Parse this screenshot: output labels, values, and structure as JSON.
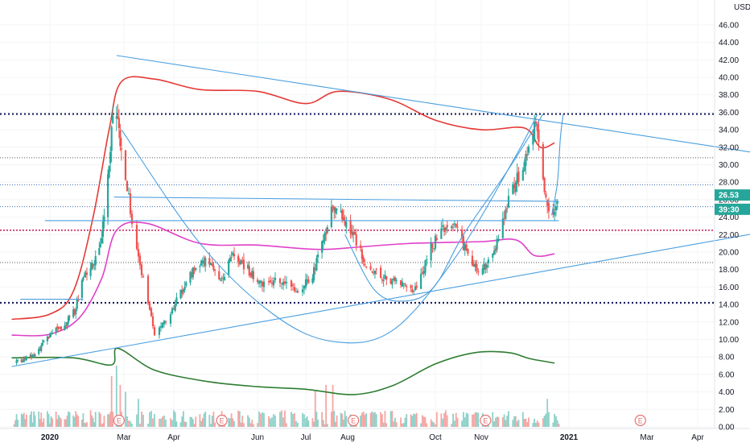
{
  "chart_data": {
    "type": "candlestick",
    "currency": "USD",
    "y_axis": {
      "range": [
        0,
        46
      ],
      "ticks": [
        "0.00",
        "2.00",
        "4.00",
        "6.00",
        "8.00",
        "10.00",
        "12.00",
        "14.00",
        "16.00",
        "18.00",
        "20.00",
        "22.00",
        "24.00",
        "26.00",
        "28.00",
        "30.00",
        "32.00",
        "34.00",
        "36.00",
        "38.00",
        "40.00",
        "42.00",
        "44.00",
        "46.00"
      ]
    },
    "x_axis": {
      "labels": [
        {
          "text": "2020",
          "bold": true
        },
        {
          "text": "Mar",
          "bold": false
        },
        {
          "text": "Apr",
          "bold": false
        },
        {
          "text": "Jun",
          "bold": false
        },
        {
          "text": "Jul",
          "bold": false
        },
        {
          "text": "Aug",
          "bold": false
        },
        {
          "text": "Oct",
          "bold": false
        },
        {
          "text": "Nov",
          "bold": false
        },
        {
          "text": "2021",
          "bold": true
        },
        {
          "text": "Mar",
          "bold": false
        },
        {
          "text": "Apr",
          "bold": false
        }
      ]
    },
    "price_badges": [
      {
        "text": "26.53",
        "value": 26.53,
        "color": "#26a69a"
      },
      {
        "text": "39:30",
        "value": 24.9,
        "color": "#26a69a"
      }
    ],
    "earnings_markers": [
      {
        "text": "E",
        "date": "2020-02-26"
      },
      {
        "text": "E",
        "date": "2020-05-06"
      },
      {
        "text": "E",
        "date": "2020-08-05"
      },
      {
        "text": "E",
        "date": "2020-11-04"
      },
      {
        "text": "E",
        "date": "2021-02-24"
      }
    ],
    "horizontal_levels": [
      {
        "value": 35.8,
        "color": "#1a1a5e",
        "style": "dotted-thick"
      },
      {
        "value": 14.2,
        "color": "#1a1a5e",
        "style": "dotted-thick"
      },
      {
        "value": 22.5,
        "color": "#c2185b",
        "style": "dotted"
      },
      {
        "value": 30.8,
        "color": "#555555",
        "style": "dotted-thin"
      },
      {
        "value": 27.7,
        "color": "#3d6fb6",
        "style": "dotted-thin"
      },
      {
        "value": 25.2,
        "color": "#3d6fb6",
        "style": "dotted-thin"
      },
      {
        "value": 18.8,
        "color": "#555555",
        "style": "dotted-thin"
      }
    ],
    "trendlines": [
      {
        "name": "upper-resistance",
        "color": "#4a9fe0",
        "from": {
          "date": "2020-02-24",
          "price": 42.5
        },
        "to": {
          "date": "2021-05-05",
          "price": 31.4
        }
      },
      {
        "name": "lower-support",
        "color": "#4a9fe0",
        "from": {
          "date": "2019-12-01",
          "price": 6.9
        },
        "to": {
          "date": "2021-05-05",
          "price": 22.1
        }
      },
      {
        "name": "range-top",
        "color": "#4a9fe0",
        "from": {
          "date": "2020-02-22",
          "price": 26.3
        },
        "to": {
          "date": "2020-12-25",
          "price": 25.8
        }
      },
      {
        "name": "range-bottom",
        "color": "#4a9fe0",
        "from": {
          "date": "2019-12-28",
          "price": 23.6
        },
        "to": {
          "date": "2020-12-25",
          "price": 23.6
        }
      },
      {
        "name": "neckline-left",
        "color": "#4a9fe0",
        "from": {
          "date": "2019-12-08",
          "price": 14.6
        },
        "to": {
          "date": "2020-01-28",
          "price": 14.6
        }
      }
    ],
    "cup_curves": [
      {
        "name": "big-cup",
        "color": "#4a9fe0",
        "points": [
          {
            "date": "2020-02-28",
            "price": 34.0
          },
          {
            "date": "2020-04-20",
            "price": 21.0
          },
          {
            "date": "2020-06-10",
            "price": 13.0
          },
          {
            "date": "2020-07-20",
            "price": 9.8
          },
          {
            "date": "2020-09-01",
            "price": 11.0
          },
          {
            "date": "2020-10-15",
            "price": 19.5
          },
          {
            "date": "2020-11-25",
            "price": 31.0
          },
          {
            "date": "2020-12-10",
            "price": 35.8
          }
        ]
      },
      {
        "name": "small-cup",
        "color": "#4a9fe0",
        "points": [
          {
            "date": "2020-07-30",
            "price": 22.0
          },
          {
            "date": "2020-08-20",
            "price": 15.6
          },
          {
            "date": "2020-09-10",
            "price": 14.4
          },
          {
            "date": "2020-09-30",
            "price": 16.0
          },
          {
            "date": "2020-10-20",
            "price": 22.0
          },
          {
            "date": "2020-11-20",
            "price": 29.5
          },
          {
            "date": "2020-12-14",
            "price": 35.8
          }
        ]
      },
      {
        "name": "handle",
        "color": "#4a9fe0",
        "points": [
          {
            "date": "2020-12-20",
            "price": 24.2
          },
          {
            "date": "2020-12-24",
            "price": 28.0
          },
          {
            "date": "2020-12-26",
            "price": 33.0
          },
          {
            "date": "2020-12-28",
            "price": 35.8
          }
        ]
      }
    ],
    "indicators": [
      {
        "color": "#e53935",
        "points": [
          {
            "date": "2019-12-01",
            "price": 12.3
          },
          {
            "date": "2020-01-01",
            "price": 12.9
          },
          {
            "date": "2020-01-20",
            "price": 15.5
          },
          {
            "date": "2020-02-05",
            "price": 24.0
          },
          {
            "date": "2020-02-18",
            "price": 34.0
          },
          {
            "date": "2020-02-28",
            "price": 39.5
          },
          {
            "date": "2020-03-20",
            "price": 39.8
          },
          {
            "date": "2020-04-20",
            "price": 38.6
          },
          {
            "date": "2020-06-01",
            "price": 38.4
          },
          {
            "date": "2020-07-01",
            "price": 37.0
          },
          {
            "date": "2020-07-25",
            "price": 38.4
          },
          {
            "date": "2020-08-30",
            "price": 37.5
          },
          {
            "date": "2020-10-01",
            "price": 35.1
          },
          {
            "date": "2020-11-01",
            "price": 34.0
          },
          {
            "date": "2020-12-01",
            "price": 34.2
          },
          {
            "date": "2020-12-12",
            "price": 32.0
          },
          {
            "date": "2020-12-22",
            "price": 32.5
          }
        ]
      },
      {
        "color": "#e040c8",
        "points": [
          {
            "date": "2019-12-01",
            "price": 10.5
          },
          {
            "date": "2020-01-01",
            "price": 10.6
          },
          {
            "date": "2020-01-25",
            "price": 12.5
          },
          {
            "date": "2020-02-12",
            "price": 17.0
          },
          {
            "date": "2020-02-24",
            "price": 22.5
          },
          {
            "date": "2020-03-15",
            "price": 23.3
          },
          {
            "date": "2020-04-20",
            "price": 21.0
          },
          {
            "date": "2020-06-01",
            "price": 20.8
          },
          {
            "date": "2020-07-10",
            "price": 20.3
          },
          {
            "date": "2020-08-10",
            "price": 20.6
          },
          {
            "date": "2020-09-15",
            "price": 21.0
          },
          {
            "date": "2020-11-01",
            "price": 21.2
          },
          {
            "date": "2020-11-25",
            "price": 21.4
          },
          {
            "date": "2020-12-08",
            "price": 19.6
          },
          {
            "date": "2020-12-22",
            "price": 19.8
          }
        ]
      },
      {
        "color": "#2e7d32",
        "points": [
          {
            "date": "2019-12-01",
            "price": 7.9
          },
          {
            "date": "2020-01-20",
            "price": 7.9
          },
          {
            "date": "2020-02-20",
            "price": 7.1
          },
          {
            "date": "2020-02-25",
            "price": 9.0
          },
          {
            "date": "2020-03-20",
            "price": 6.5
          },
          {
            "date": "2020-04-25",
            "price": 5.2
          },
          {
            "date": "2020-06-01",
            "price": 4.6
          },
          {
            "date": "2020-07-01",
            "price": 4.3
          },
          {
            "date": "2020-08-05",
            "price": 3.7
          },
          {
            "date": "2020-09-01",
            "price": 4.7
          },
          {
            "date": "2020-10-01",
            "price": 7.2
          },
          {
            "date": "2020-10-28",
            "price": 8.5
          },
          {
            "date": "2020-11-20",
            "price": 8.5
          },
          {
            "date": "2020-12-05",
            "price": 7.8
          },
          {
            "date": "2020-12-22",
            "price": 7.3
          }
        ]
      }
    ],
    "price_path": [
      {
        "date": "2019-12-05",
        "price": 7.4
      },
      {
        "date": "2019-12-20",
        "price": 8.2
      },
      {
        "date": "2020-01-02",
        "price": 10.8
      },
      {
        "date": "2020-01-12",
        "price": 11.5
      },
      {
        "date": "2020-01-22",
        "price": 13.5
      },
      {
        "date": "2020-01-28",
        "price": 17.5
      },
      {
        "date": "2020-02-05",
        "price": 18.6
      },
      {
        "date": "2020-02-12",
        "price": 21.5
      },
      {
        "date": "2020-02-18",
        "price": 30.0
      },
      {
        "date": "2020-02-22",
        "price": 37.5
      },
      {
        "date": "2020-02-26",
        "price": 34.0
      },
      {
        "date": "2020-03-01",
        "price": 30.5
      },
      {
        "date": "2020-03-05",
        "price": 24.5
      },
      {
        "date": "2020-03-10",
        "price": 19.5
      },
      {
        "date": "2020-03-15",
        "price": 15.5
      },
      {
        "date": "2020-03-20",
        "price": 10.5
      },
      {
        "date": "2020-03-28",
        "price": 12.5
      },
      {
        "date": "2020-04-05",
        "price": 15.0
      },
      {
        "date": "2020-04-15",
        "price": 18.0
      },
      {
        "date": "2020-04-25",
        "price": 19.5
      },
      {
        "date": "2020-05-05",
        "price": 16.5
      },
      {
        "date": "2020-05-15",
        "price": 20.0
      },
      {
        "date": "2020-05-25",
        "price": 18.0
      },
      {
        "date": "2020-06-05",
        "price": 16.2
      },
      {
        "date": "2020-06-15",
        "price": 17.0
      },
      {
        "date": "2020-06-25",
        "price": 15.5
      },
      {
        "date": "2020-07-05",
        "price": 17.0
      },
      {
        "date": "2020-07-15",
        "price": 21.5
      },
      {
        "date": "2020-07-20",
        "price": 26.0
      },
      {
        "date": "2020-07-28",
        "price": 24.0
      },
      {
        "date": "2020-08-05",
        "price": 22.0
      },
      {
        "date": "2020-08-15",
        "price": 18.0
      },
      {
        "date": "2020-08-28",
        "price": 17.0
      },
      {
        "date": "2020-09-08",
        "price": 16.4
      },
      {
        "date": "2020-09-18",
        "price": 15.5
      },
      {
        "date": "2020-09-28",
        "price": 20.5
      },
      {
        "date": "2020-10-05",
        "price": 22.5
      },
      {
        "date": "2020-10-15",
        "price": 23.0
      },
      {
        "date": "2020-10-22",
        "price": 20.0
      },
      {
        "date": "2020-10-30",
        "price": 17.5
      },
      {
        "date": "2020-11-08",
        "price": 19.0
      },
      {
        "date": "2020-11-15",
        "price": 23.0
      },
      {
        "date": "2020-11-22",
        "price": 27.0
      },
      {
        "date": "2020-11-30",
        "price": 29.5
      },
      {
        "date": "2020-12-05",
        "price": 32.0
      },
      {
        "date": "2020-12-09",
        "price": 35.0
      },
      {
        "date": "2020-12-12",
        "price": 30.0
      },
      {
        "date": "2020-12-16",
        "price": 25.5
      },
      {
        "date": "2020-12-20",
        "price": 24.0
      },
      {
        "date": "2020-12-24",
        "price": 26.5
      }
    ],
    "volume_spikes": [
      {
        "date": "2020-02-20",
        "value": 5.8
      },
      {
        "date": "2020-02-24",
        "value": 7.0
      },
      {
        "date": "2020-02-27",
        "value": 4.8
      },
      {
        "date": "2020-03-02",
        "value": 4.0
      },
      {
        "date": "2020-03-10",
        "value": 3.2
      },
      {
        "date": "2020-07-08",
        "value": 4.2
      },
      {
        "date": "2020-07-16",
        "value": 4.8
      },
      {
        "date": "2020-07-21",
        "value": 4.8
      },
      {
        "date": "2020-09-27",
        "value": 4.6
      },
      {
        "date": "2020-12-13",
        "value": 3.8
      },
      {
        "date": "2020-12-17",
        "value": 3.2
      }
    ]
  }
}
